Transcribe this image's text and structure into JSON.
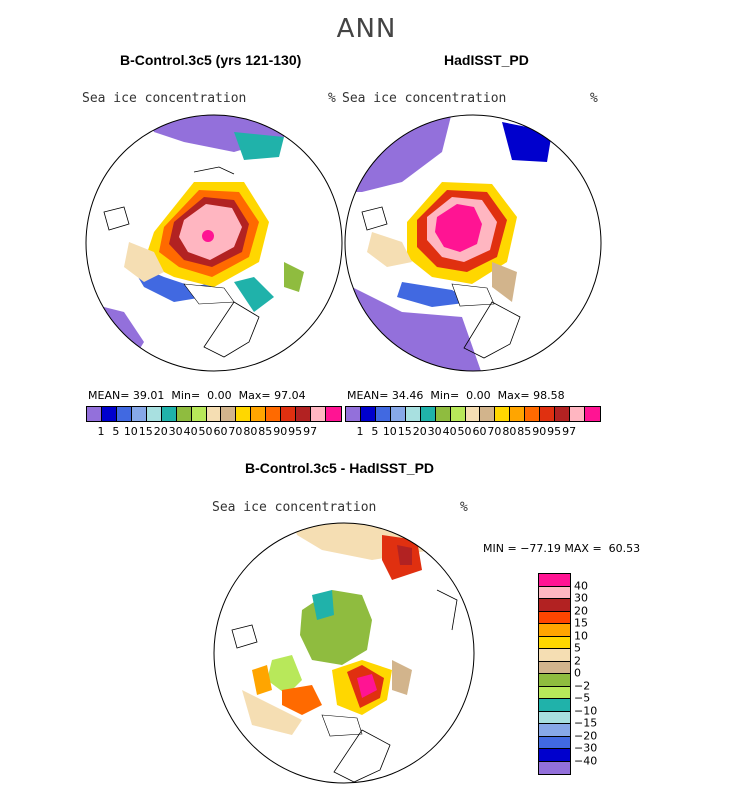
{
  "figure": {
    "suptitle": "ANN",
    "variable_label": "Sea ice concentration",
    "units": "%"
  },
  "panels": [
    {
      "title": "B-Control.3c5 (yrs 121-130)",
      "mean_label": "MEAN=",
      "mean": "39.01",
      "min_label": "Min=",
      "min": "0.00",
      "max_label": "Max=",
      "max": "97.04"
    },
    {
      "title": "HadISST_PD",
      "mean_label": "MEAN=",
      "mean": "34.46",
      "min_label": "Min=",
      "min": "0.00",
      "max_label": "Max=",
      "max": "98.58"
    }
  ],
  "diff_panel": {
    "title": "B-Control.3c5 - HadISST_PD",
    "min_label": "MIN =",
    "min": "−77.19",
    "max_label": "MAX =",
    "max": "60.53"
  },
  "chart_data": [
    {
      "type": "heatmap",
      "projection": "north polar stereographic",
      "title": "B-Control.3c5 (yrs 121-130)",
      "variable": "Sea ice concentration",
      "units": "%",
      "mean": 39.01,
      "min": 0.0,
      "max": 97.04,
      "colorbar_levels": [
        1,
        5,
        10,
        15,
        20,
        30,
        40,
        50,
        60,
        70,
        80,
        85,
        90,
        95,
        97
      ],
      "colorbar_colors": [
        "#9370db",
        "#0000cd",
        "#4169e1",
        "#87a8e8",
        "#a8e0e0",
        "#20b2aa",
        "#8fbc3f",
        "#b8e85a",
        "#f5deb3",
        "#d2b48c",
        "#ffd700",
        "#ffa500",
        "#ff6a00",
        "#e03010",
        "#b22222",
        "#ffb6c1",
        "#ff1493"
      ]
    },
    {
      "type": "heatmap",
      "projection": "north polar stereographic",
      "title": "HadISST_PD",
      "variable": "Sea ice concentration",
      "units": "%",
      "mean": 34.46,
      "min": 0.0,
      "max": 98.58,
      "colorbar_levels": [
        1,
        5,
        10,
        15,
        20,
        30,
        40,
        50,
        60,
        70,
        80,
        85,
        90,
        95,
        97
      ],
      "colorbar_colors": [
        "#9370db",
        "#0000cd",
        "#4169e1",
        "#87a8e8",
        "#a8e0e0",
        "#20b2aa",
        "#8fbc3f",
        "#b8e85a",
        "#f5deb3",
        "#d2b48c",
        "#ffd700",
        "#ffa500",
        "#ff6a00",
        "#e03010",
        "#b22222",
        "#ffb6c1",
        "#ff1493"
      ]
    },
    {
      "type": "heatmap",
      "projection": "north polar stereographic",
      "title": "B-Control.3c5 - HadISST_PD",
      "variable": "Sea ice concentration",
      "units": "%",
      "min": -77.19,
      "max": 60.53,
      "colorbar_levels": [
        40,
        30,
        20,
        15,
        10,
        5,
        2,
        0,
        -2,
        -5,
        -10,
        -15,
        -20,
        -30,
        -40
      ],
      "colorbar_levels_text": [
        "40",
        "30",
        "20",
        "15",
        "10",
        "5",
        "2",
        "0",
        "−2",
        "−5",
        "−10",
        "−15",
        "−20",
        "−30",
        "−40"
      ],
      "colorbar_colors": [
        "#ff1493",
        "#ffb6c1",
        "#b22222",
        "#ff4500",
        "#ffa500",
        "#ffd700",
        "#f5deb3",
        "#d2b48c",
        "#8fbc3f",
        "#b8e85a",
        "#20b2aa",
        "#a8e0e0",
        "#87a8e8",
        "#4169e1",
        "#0000cd",
        "#9370db"
      ]
    }
  ]
}
